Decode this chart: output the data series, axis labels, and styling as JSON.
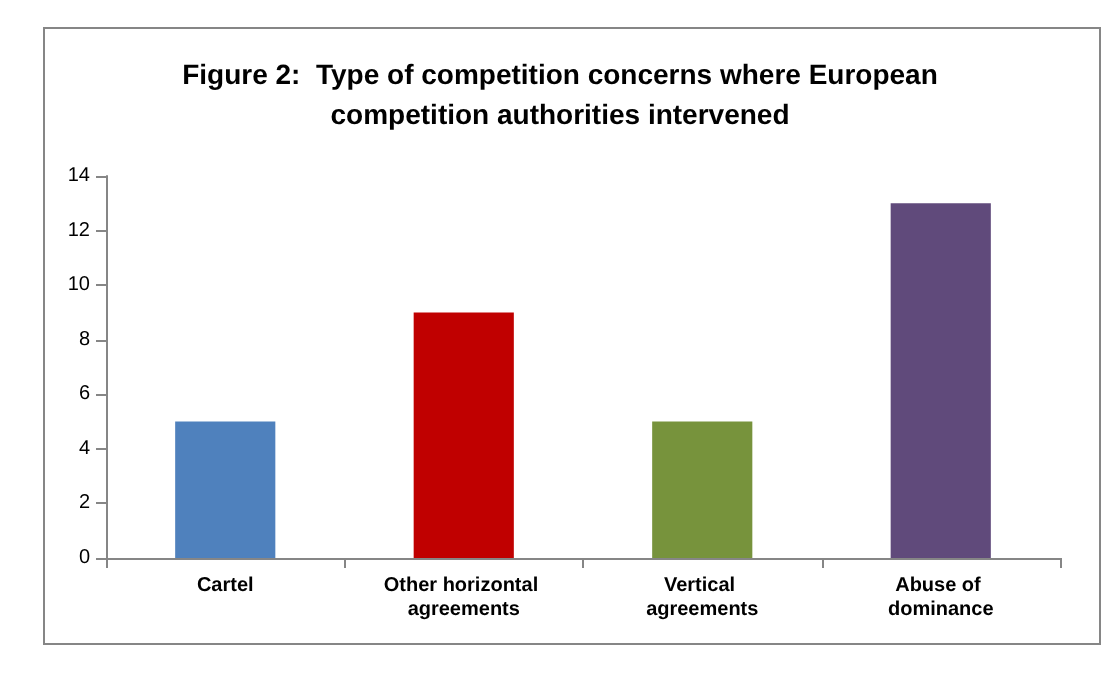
{
  "chart_data": {
    "type": "bar",
    "title": "Figure 2:  Type of competition concerns where European\ncompetition authorities intervened",
    "categories": [
      "Cartel",
      "Other horizontal agreements",
      "Vertical agreements",
      "Abuse of dominance"
    ],
    "values": [
      5,
      9,
      5,
      13
    ],
    "colors": [
      "#4f81bd",
      "#c00000",
      "#77933c",
      "#604a7b"
    ],
    "ylim": [
      0,
      14
    ],
    "yticks": [
      0,
      2,
      4,
      6,
      8,
      10,
      12,
      14
    ],
    "grid": false
  }
}
